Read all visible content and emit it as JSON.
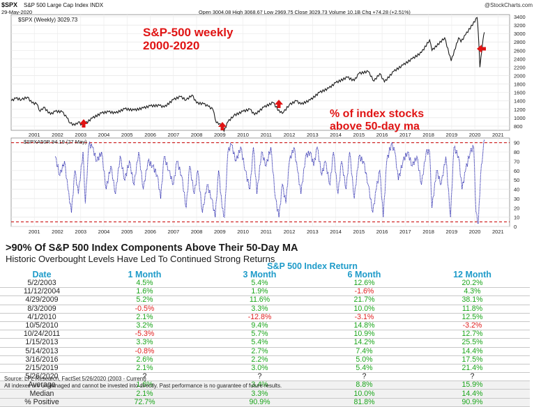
{
  "chart_data": [
    {
      "type": "line",
      "header": {
        "symbol": "$SPX",
        "name": "S&P 500 Large Cap Index INDX",
        "date": "29-May-2020",
        "quote": "Open 3004.08  High 3068.67  Low 2969.75  Close 3029.73  Volume 10.1B  Chg +74.28 (+2.51%)",
        "brand": "@StockCharts.com",
        "legend": "$SPX (Weekly) 3029.73"
      },
      "annotations": {
        "title_line1": "S&P-500 weekly",
        "title_line2": "2000-2020",
        "note_line1": "% of index stocks",
        "note_line2": "above 50-day ma"
      },
      "x_tick_labels": [
        "2001",
        "2002",
        "2003",
        "2004",
        "2005",
        "2006",
        "2007",
        "2008",
        "2009",
        "2010",
        "2011",
        "2012",
        "2013",
        "2014",
        "2015",
        "2016",
        "2017",
        "2018",
        "2019",
        "2020",
        "2021"
      ],
      "y_tick_labels": [
        "800",
        "1000",
        "1200",
        "1400",
        "1600",
        "1800",
        "2000",
        "2200",
        "2400",
        "2600",
        "2800",
        "3000",
        "3200",
        "3400"
      ],
      "ylim": [
        700,
        3450
      ],
      "xlim": [
        2000.0,
        2021.5
      ],
      "series": [
        {
          "x": [
            2000.0,
            2000.2,
            2000.45,
            2000.7,
            2000.9,
            2001.1,
            2001.25,
            2001.4,
            2001.7,
            2001.9,
            2002.2,
            2002.4,
            2002.55,
            2002.75,
            2002.9,
            2003.1,
            2003.2,
            2003.5,
            2003.9,
            2004.2,
            2004.5,
            2004.9,
            2005.3,
            2005.7,
            2006.0,
            2006.4,
            2006.6,
            2007.0,
            2007.3,
            2007.55,
            2007.8,
            2008.0,
            2008.3,
            2008.5,
            2008.7,
            2008.85,
            2009.0,
            2009.18,
            2009.35,
            2009.6,
            2010.0,
            2010.3,
            2010.5,
            2010.9,
            2011.3,
            2011.6,
            2011.75,
            2012.0,
            2012.3,
            2012.5,
            2012.9,
            2013.3,
            2013.7,
            2014.0,
            2014.5,
            2014.8,
            2015.0,
            2015.4,
            2015.65,
            2015.9,
            2016.1,
            2016.5,
            2016.9,
            2017.3,
            2017.7,
            2018.05,
            2018.15,
            2018.7,
            2018.98,
            2019.3,
            2019.4,
            2019.6,
            2020.1,
            2020.15,
            2020.22,
            2020.35,
            2020.41
          ],
          "y": [
            1400,
            1460,
            1430,
            1490,
            1350,
            1330,
            1150,
            1250,
            1080,
            1150,
            1140,
            1000,
            870,
            820,
            900,
            800,
            860,
            990,
            1110,
            1140,
            1110,
            1210,
            1180,
            1230,
            1280,
            1290,
            1250,
            1430,
            1500,
            1420,
            1540,
            1350,
            1330,
            1270,
            1200,
            880,
            860,
            680,
            900,
            1050,
            1150,
            1200,
            1070,
            1250,
            1360,
            1120,
            1130,
            1310,
            1400,
            1320,
            1420,
            1600,
            1700,
            1830,
            1960,
            1880,
            2050,
            2100,
            1870,
            2050,
            1850,
            2100,
            2250,
            2400,
            2550,
            2850,
            2600,
            2900,
            2350,
            2900,
            2800,
            2970,
            3380,
            3000,
            2200,
            2850,
            3030
          ]
        }
      ]
    },
    {
      "type": "line",
      "legend": "$SPXA50R 94.19 (27 May)",
      "x_tick_labels": [
        "2001",
        "2002",
        "2003",
        "2004",
        "2005",
        "2006",
        "2007",
        "2008",
        "2009",
        "2010",
        "2011",
        "2012",
        "2013",
        "2014",
        "2015",
        "2016",
        "2017",
        "2018",
        "2019",
        "2020",
        "2021"
      ],
      "y_tick_labels": [
        "0",
        "10",
        "20",
        "30",
        "40",
        "50",
        "60",
        "70",
        "80",
        "90"
      ],
      "ylim": [
        0,
        95
      ],
      "xlim": [
        2000.0,
        2021.5
      ],
      "reference_lines": [
        90,
        5
      ],
      "series": [
        {
          "x": [
            2001.9,
            2002.1,
            2002.3,
            2002.45,
            2002.6,
            2002.75,
            2002.9,
            2003.1,
            2003.2,
            2003.35,
            2003.5,
            2003.7,
            2003.9,
            2004.1,
            2004.3,
            2004.5,
            2004.7,
            2004.9,
            2005.1,
            2005.3,
            2005.5,
            2005.7,
            2005.9,
            2006.1,
            2006.3,
            2006.45,
            2006.6,
            2006.8,
            2007.0,
            2007.15,
            2007.35,
            2007.55,
            2007.7,
            2007.9,
            2008.05,
            2008.25,
            2008.45,
            2008.65,
            2008.8,
            2008.95,
            2009.1,
            2009.2,
            2009.35,
            2009.5,
            2009.7,
            2009.9,
            2010.1,
            2010.3,
            2010.45,
            2010.6,
            2010.8,
            2011.0,
            2011.2,
            2011.4,
            2011.55,
            2011.7,
            2011.85,
            2012.0,
            2012.2,
            2012.35,
            2012.5,
            2012.7,
            2012.9,
            2013.05,
            2013.2,
            2013.4,
            2013.55,
            2013.75,
            2013.9,
            2014.1,
            2014.25,
            2014.45,
            2014.6,
            2014.8,
            2015.0,
            2015.2,
            2015.4,
            2015.6,
            2015.75,
            2015.9,
            2016.05,
            2016.2,
            2016.4,
            2016.55,
            2016.7,
            2016.9,
            2017.1,
            2017.3,
            2017.5,
            2017.7,
            2017.9,
            2018.05,
            2018.15,
            2018.35,
            2018.55,
            2018.75,
            2018.95,
            2019.1,
            2019.3,
            2019.45,
            2019.6,
            2019.8,
            2019.95,
            2020.05,
            2020.15,
            2020.25,
            2020.35,
            2020.41
          ],
          "y": [
            75,
            55,
            70,
            40,
            15,
            60,
            35,
            80,
            25,
            88,
            85,
            70,
            80,
            40,
            65,
            35,
            75,
            50,
            70,
            45,
            80,
            40,
            70,
            65,
            55,
            30,
            75,
            60,
            45,
            70,
            55,
            20,
            65,
            35,
            60,
            15,
            45,
            30,
            10,
            60,
            20,
            10,
            80,
            88,
            70,
            85,
            60,
            40,
            85,
            35,
            80,
            65,
            85,
            30,
            10,
            45,
            25,
            70,
            85,
            60,
            35,
            75,
            80,
            65,
            85,
            55,
            70,
            45,
            80,
            35,
            70,
            40,
            80,
            30,
            75,
            70,
            45,
            15,
            40,
            60,
            10,
            70,
            89,
            80,
            50,
            70,
            80,
            65,
            75,
            45,
            80,
            80,
            20,
            60,
            45,
            75,
            10,
            85,
            75,
            40,
            60,
            80,
            85,
            15,
            3,
            55,
            80,
            94
          ]
        }
      ]
    }
  ],
  "table": {
    "title": ">90% Of S&P 500 Index Components Above Their 50-Day MA",
    "subtitle": "Historic Overbought Levels Have Led To Continued Strong Returns",
    "super_header": "S&P 500 Index Return",
    "headers": [
      "Date",
      "1 Month",
      "3 Month",
      "6 Month",
      "12 Month"
    ],
    "rows": [
      [
        "5/2/2003",
        "4.5%",
        "5.4%",
        "12.6%",
        "20.2%"
      ],
      [
        "11/12/2004",
        "1.6%",
        "1.9%",
        "-1.6%",
        "4.3%"
      ],
      [
        "4/29/2009",
        "5.2%",
        "11.6%",
        "21.7%",
        "38.1%"
      ],
      [
        "8/3/2009",
        "-0.5%",
        "3.3%",
        "10.0%",
        "11.8%"
      ],
      [
        "4/1/2010",
        "2.1%",
        "-12.8%",
        "-3.1%",
        "12.5%"
      ],
      [
        "10/5/2010",
        "3.2%",
        "9.4%",
        "14.8%",
        "-3.2%"
      ],
      [
        "10/24/2011",
        "-5.3%",
        "5.7%",
        "10.9%",
        "12.7%"
      ],
      [
        "1/15/2013",
        "3.3%",
        "5.4%",
        "14.2%",
        "25.5%"
      ],
      [
        "5/14/2013",
        "-0.8%",
        "2.7%",
        "7.4%",
        "14.4%"
      ],
      [
        "3/16/2016",
        "2.6%",
        "2.2%",
        "5.0%",
        "17.5%"
      ],
      [
        "2/15/2019",
        "2.1%",
        "3.0%",
        "5.4%",
        "21.4%"
      ],
      [
        "5/26/2020",
        "?",
        "?",
        "?",
        "?"
      ]
    ],
    "summary": [
      [
        "Average",
        "1.6%",
        "3.4%",
        "8.8%",
        "15.9%"
      ],
      [
        "Median",
        "2.1%",
        "3.3%",
        "10.0%",
        "14.4%"
      ],
      [
        "% Positive",
        "72.7%",
        "90.9%",
        "81.8%",
        "90.9%"
      ]
    ],
    "footnote1": "Source: LPL Research, FactSet 5/26/2020 (2003 - Current)",
    "footnote2": "All indexes are unmanaged and cannot be invested into directly. Past performance is no guarantee of future results."
  },
  "colors": {
    "price_line": "#1a1a1a",
    "price_down": "#cc1111",
    "breadth_line": "#1a1aa8",
    "reference": "#cc1111",
    "annotation": "#e01414",
    "arrow": "#e01414",
    "grid": "#e2e2e2",
    "header_blue": "#1e9bc9",
    "positive": "#1aa51a",
    "negative": "#e01e1e"
  }
}
